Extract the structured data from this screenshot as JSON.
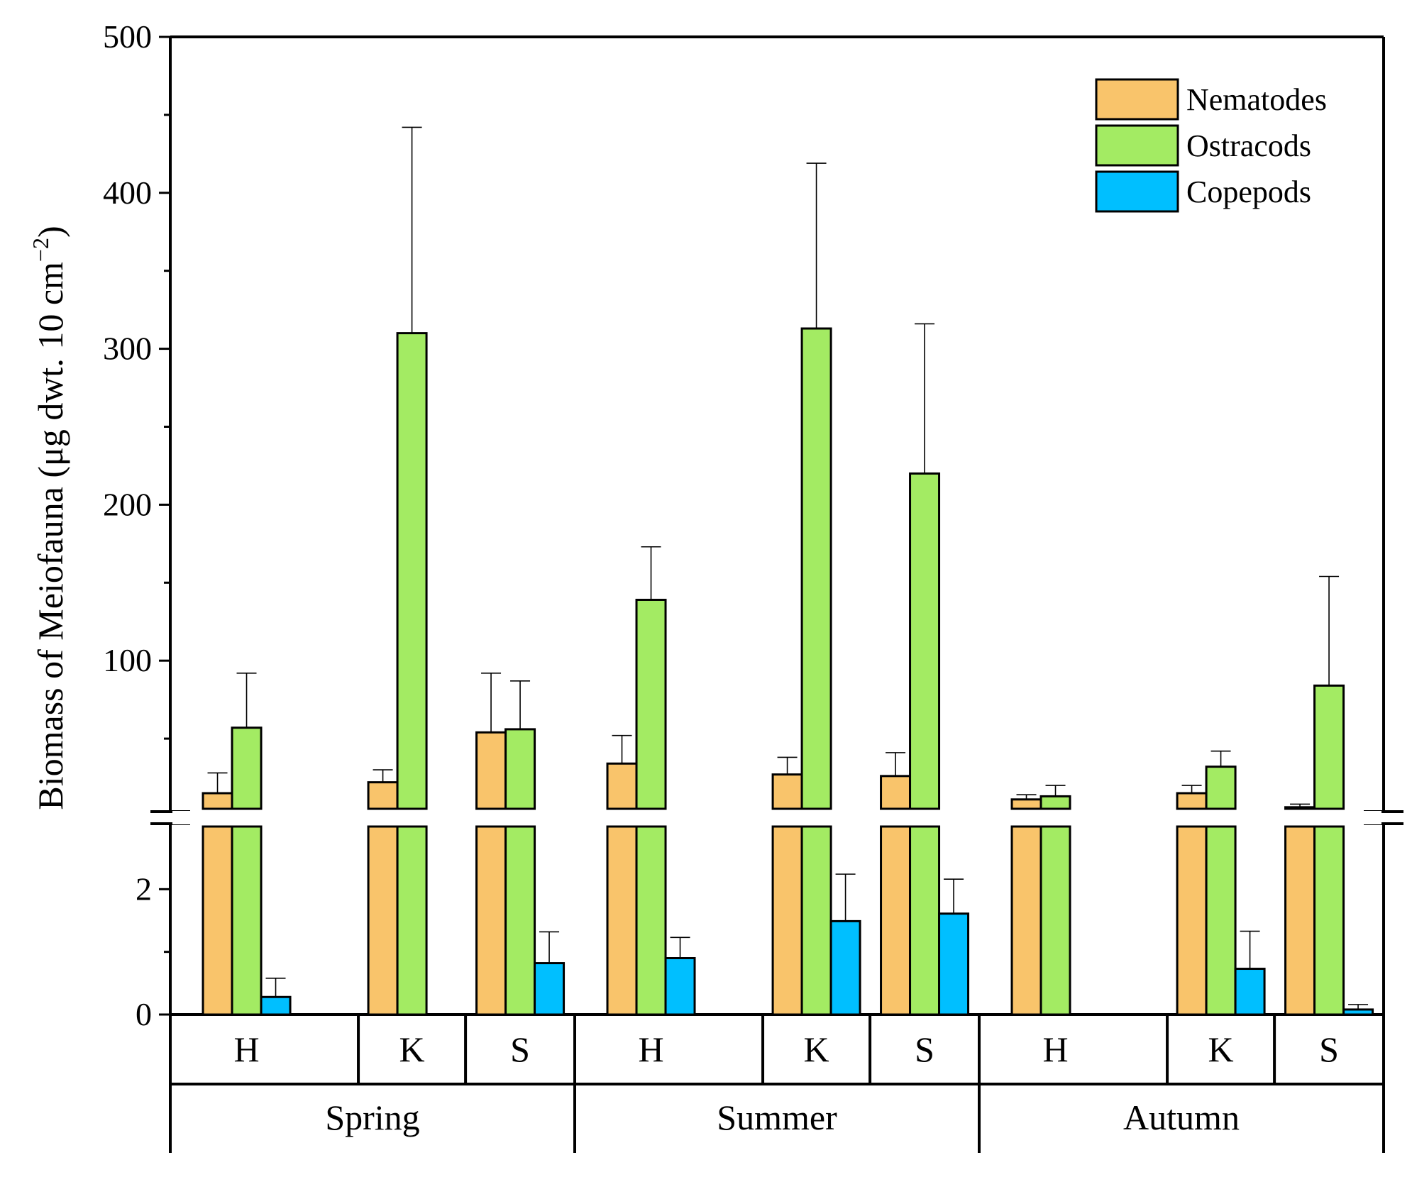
{
  "chart_data": {
    "type": "bar",
    "title": "",
    "ylabel": "Biomass of Meiofauna (μg dwt. 10 cm",
    "ylabel_sup": "−2",
    "ylabel_close": ")",
    "axis_break": true,
    "upper_axis": {
      "ylim": [
        5,
        500
      ],
      "ticks": [
        100,
        200,
        300,
        400,
        500
      ],
      "minor_ticks": [
        50,
        150,
        250,
        350,
        450
      ]
    },
    "lower_axis": {
      "ylim": [
        0,
        3
      ],
      "ticks": [
        0,
        2
      ],
      "minor_ticks": [
        1
      ]
    },
    "seasons": [
      {
        "label": "Spring",
        "sites": [
          "H",
          "K",
          "S"
        ]
      },
      {
        "label": "Summer",
        "sites": [
          "H",
          "K",
          "S"
        ]
      },
      {
        "label": "Autumn",
        "sites": [
          "H",
          "K",
          "S"
        ]
      }
    ],
    "series": [
      {
        "name": "Nematodes",
        "color": "#F9C46B",
        "values": [
          15,
          22,
          54,
          34,
          27,
          26,
          11,
          15,
          6
        ],
        "errors": [
          13,
          8,
          38,
          18,
          11,
          15,
          3,
          5,
          2
        ]
      },
      {
        "name": "Ostracods",
        "color": "#A3EB63",
        "values": [
          57,
          310,
          56,
          139,
          313,
          220,
          13,
          32,
          84
        ],
        "errors": [
          35,
          132,
          31,
          34,
          106,
          96,
          7,
          10,
          70
        ]
      },
      {
        "name": "Copepods",
        "color": "#00BFFF",
        "values": [
          0.28,
          null,
          0.82,
          0.9,
          1.49,
          1.61,
          null,
          0.73,
          0.08
        ],
        "errors": [
          0.3,
          null,
          0.5,
          0.33,
          0.75,
          0.55,
          null,
          0.6,
          0.08
        ]
      }
    ]
  }
}
